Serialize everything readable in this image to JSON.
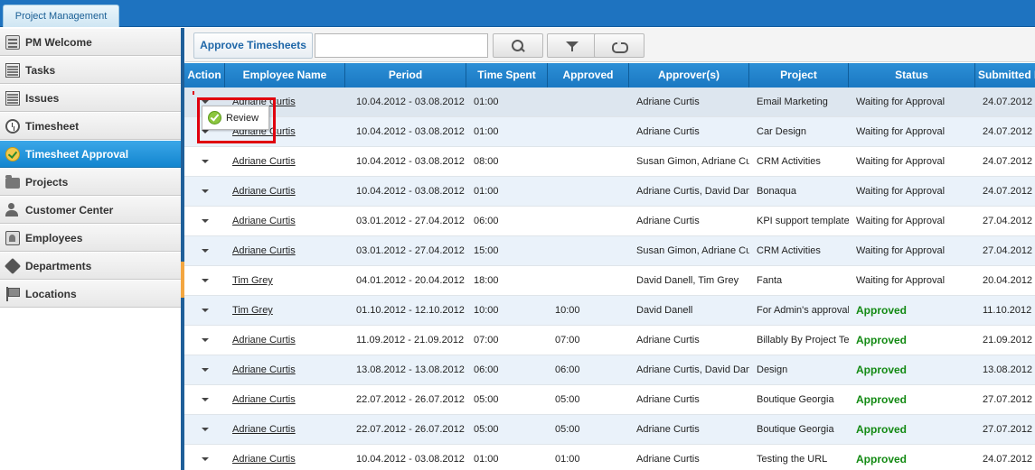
{
  "app": {
    "tab_label": "Project Management"
  },
  "sidebar": {
    "items": [
      {
        "label": "PM Welcome",
        "icon": "box-icon",
        "active": false
      },
      {
        "label": "Tasks",
        "icon": "list-icon",
        "active": false
      },
      {
        "label": "Issues",
        "icon": "list-icon",
        "active": false
      },
      {
        "label": "Timesheet",
        "icon": "clock-icon",
        "active": false
      },
      {
        "label": "Timesheet Approval",
        "icon": "check-icon",
        "active": true
      },
      {
        "label": "Projects",
        "icon": "folder-icon",
        "active": false
      },
      {
        "label": "Customer Center",
        "icon": "people-icon",
        "active": false
      },
      {
        "label": "Employees",
        "icon": "home-icon",
        "active": false
      },
      {
        "label": "Departments",
        "icon": "cube-icon",
        "active": false
      },
      {
        "label": "Locations",
        "icon": "flag-icon",
        "active": false
      }
    ]
  },
  "toolbar": {
    "approve_label": "Approve Timesheets",
    "search_value": "",
    "search_icon": "search-icon",
    "filter_icon": "filter-icon",
    "refresh_icon": "refresh-icon"
  },
  "grid": {
    "columns": [
      "Action",
      "Employee Name",
      "Period",
      "Time Spent",
      "Approved",
      "Approver(s)",
      "Project",
      "Status",
      "Submitted D"
    ],
    "rows": [
      {
        "employee": "Adriane Curtis",
        "period": "10.04.2012 - 03.08.2012",
        "time": "01:00",
        "approved": "",
        "approvers": "Adriane Curtis",
        "project": "Email Marketing",
        "status": "Waiting for Approval",
        "submitted": "24.07.2012"
      },
      {
        "employee": "Adriane Curtis",
        "period": "10.04.2012 - 03.08.2012",
        "time": "01:00",
        "approved": "",
        "approvers": "Adriane Curtis",
        "project": "Car Design",
        "status": "Waiting for Approval",
        "submitted": "24.07.2012"
      },
      {
        "employee": "Adriane Curtis",
        "period": "10.04.2012 - 03.08.2012",
        "time": "08:00",
        "approved": "",
        "approvers": "Susan Gimon, Adriane Curtis",
        "project": "CRM Activities",
        "status": "Waiting for Approval",
        "submitted": "24.07.2012"
      },
      {
        "employee": "Adriane Curtis",
        "period": "10.04.2012 - 03.08.2012",
        "time": "01:00",
        "approved": "",
        "approvers": "Adriane Curtis, David Danell",
        "project": "Bonaqua",
        "status": "Waiting for Approval",
        "submitted": "24.07.2012"
      },
      {
        "employee": "Adriane Curtis",
        "period": "03.01.2012 - 27.04.2012",
        "time": "06:00",
        "approved": "",
        "approvers": "Adriane Curtis",
        "project": "KPI support templates",
        "status": "Waiting for Approval",
        "submitted": "27.04.2012"
      },
      {
        "employee": "Adriane Curtis",
        "period": "03.01.2012 - 27.04.2012",
        "time": "15:00",
        "approved": "",
        "approvers": "Susan Gimon, Adriane Curtis",
        "project": "CRM Activities",
        "status": "Waiting for Approval",
        "submitted": "27.04.2012"
      },
      {
        "employee": "Tim Grey",
        "period": "04.01.2012 - 20.04.2012",
        "time": "18:00",
        "approved": "",
        "approvers": "David Danell, Tim Grey",
        "project": "Fanta",
        "status": "Waiting for Approval",
        "submitted": "20.04.2012"
      },
      {
        "employee": "Tim Grey",
        "period": "01.10.2012 - 12.10.2012",
        "time": "10:00",
        "approved": "10:00",
        "approvers": "David Danell",
        "project": "For Admin's approval",
        "status": "Approved",
        "submitted": "11.10.2012"
      },
      {
        "employee": "Adriane Curtis",
        "period": "11.09.2012 - 21.09.2012",
        "time": "07:00",
        "approved": "07:00",
        "approvers": "Adriane Curtis",
        "project": "Billably By Project Testing",
        "status": "Approved",
        "submitted": "21.09.2012"
      },
      {
        "employee": "Adriane Curtis",
        "period": "13.08.2012 - 13.08.2012",
        "time": "06:00",
        "approved": "06:00",
        "approvers": "Adriane Curtis, David Danell",
        "project": "Design",
        "status": "Approved",
        "submitted": "13.08.2012"
      },
      {
        "employee": "Adriane Curtis",
        "period": "22.07.2012 - 26.07.2012",
        "time": "05:00",
        "approved": "05:00",
        "approvers": "Adriane Curtis",
        "project": "Boutique Georgia",
        "status": "Approved",
        "submitted": "27.07.2012"
      },
      {
        "employee": "Adriane Curtis",
        "period": "22.07.2012 - 26.07.2012",
        "time": "05:00",
        "approved": "05:00",
        "approvers": "Adriane Curtis",
        "project": "Boutique Georgia",
        "status": "Approved",
        "submitted": "27.07.2012"
      },
      {
        "employee": "Adriane Curtis",
        "period": "10.04.2012 - 03.08.2012",
        "time": "01:00",
        "approved": "01:00",
        "approvers": "Adriane Curtis",
        "project": "Testing the URL",
        "status": "Approved",
        "submitted": "24.07.2012"
      }
    ]
  },
  "popup": {
    "review_label": "Review",
    "icon": "check-icon"
  },
  "colors": {
    "header_bg": "#1a78c2",
    "active_nav": "#1285cf",
    "approved_text": "#138a13",
    "highlight": "#e0000e"
  }
}
